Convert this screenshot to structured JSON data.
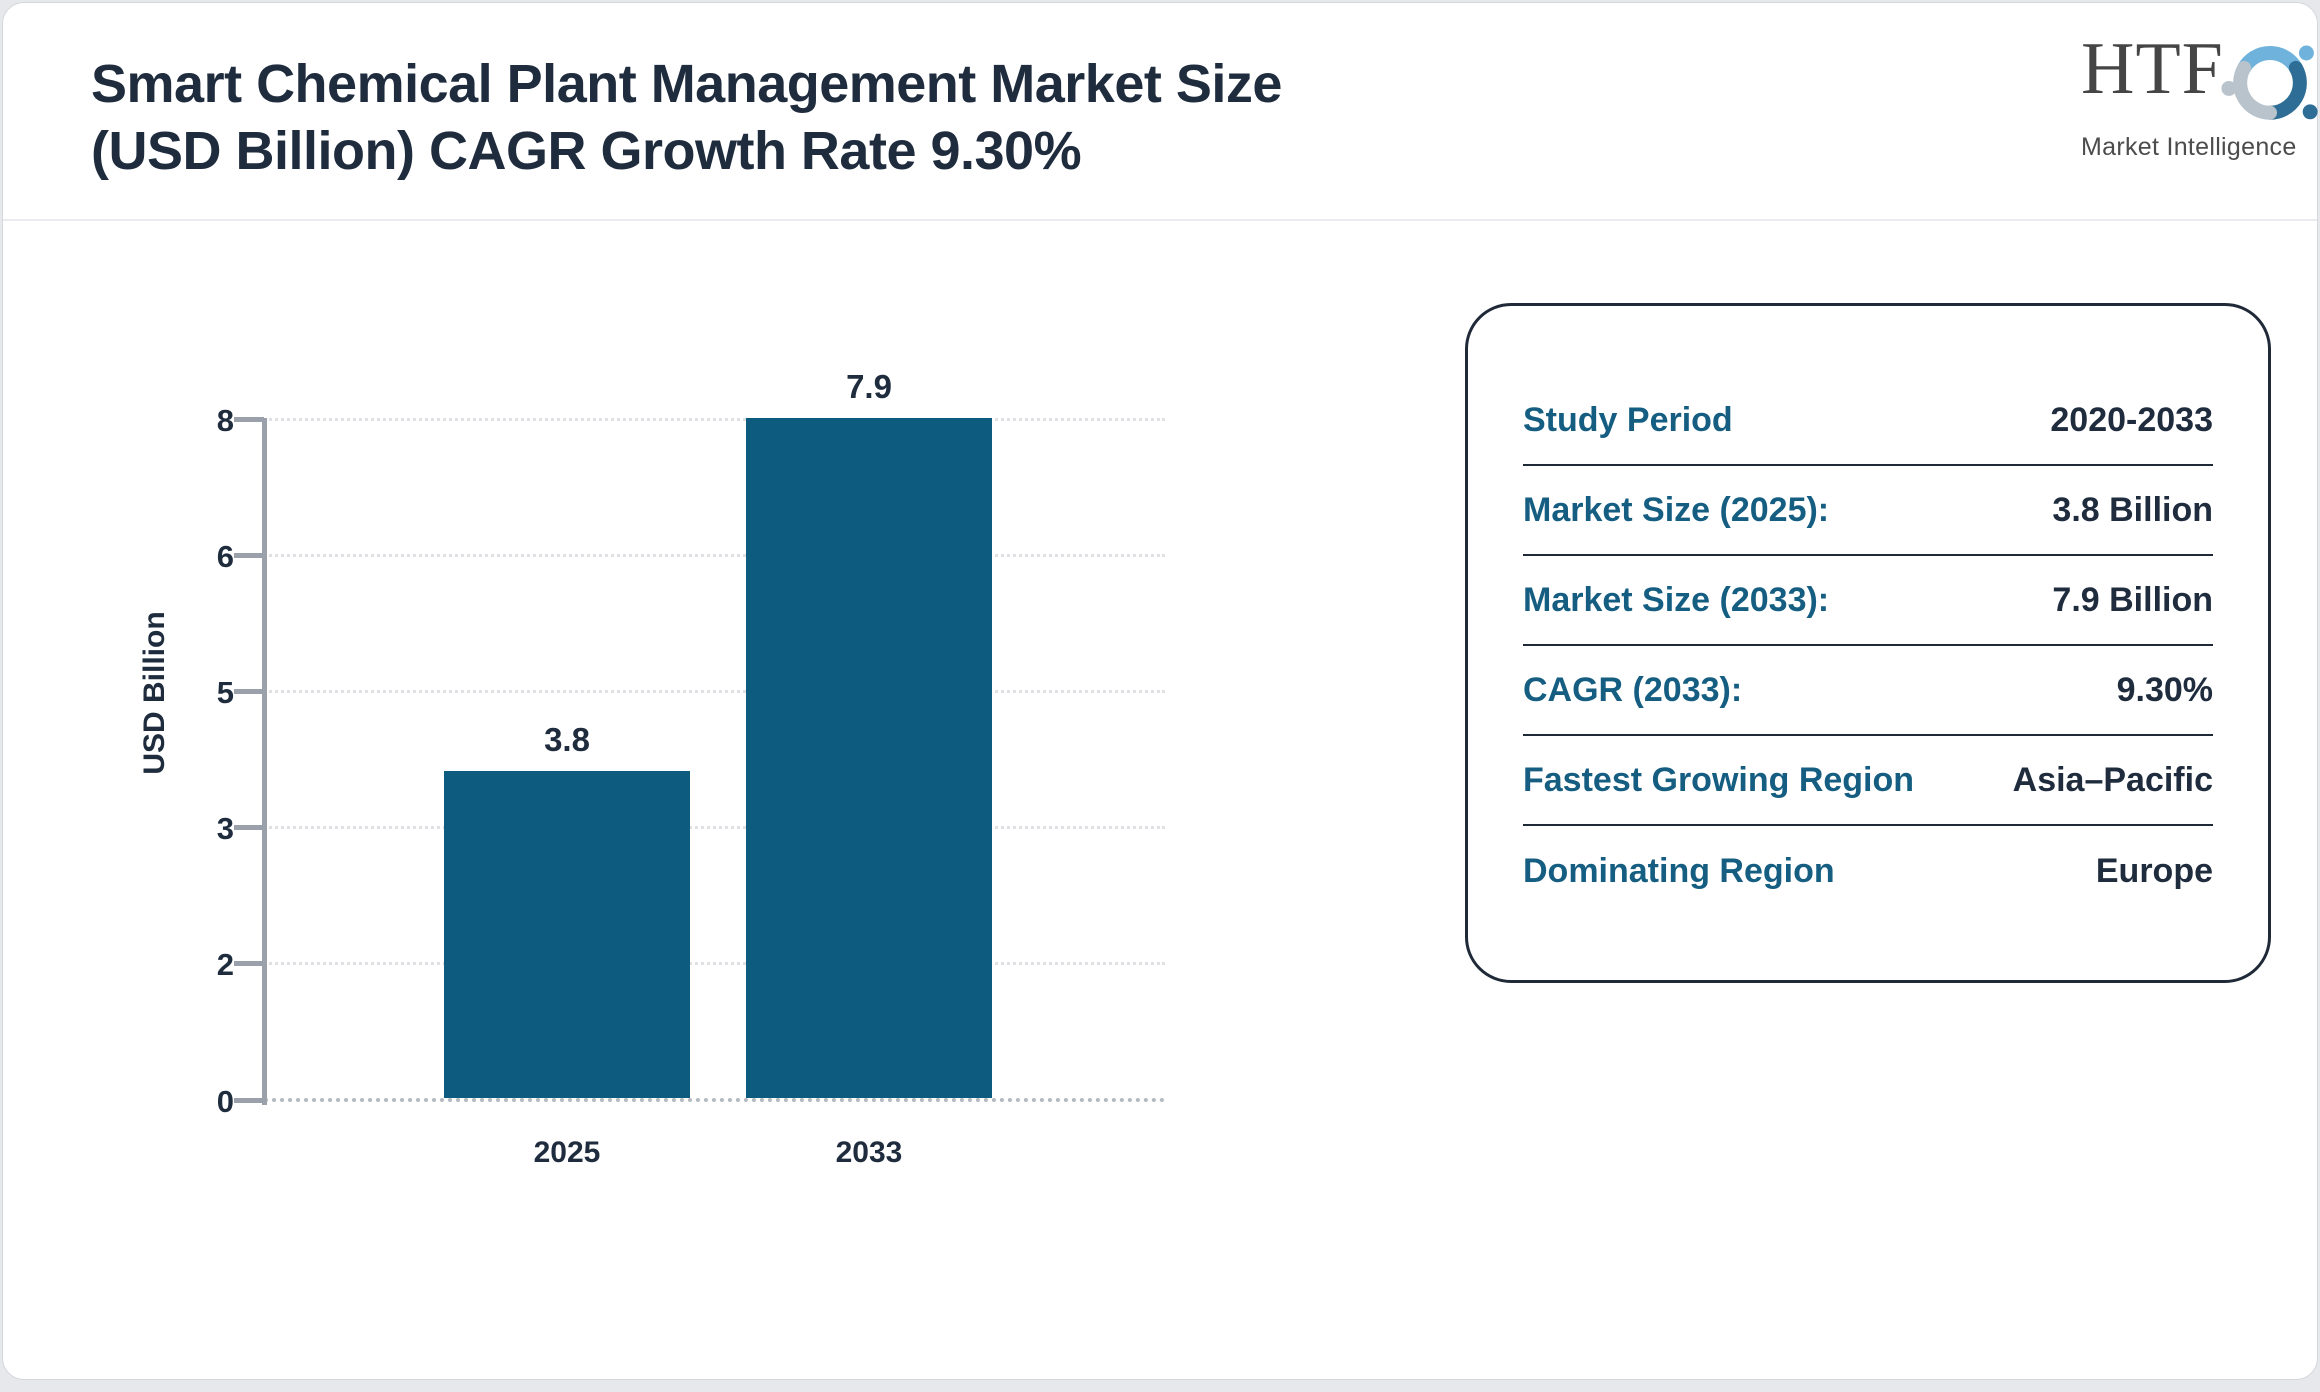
{
  "header": {
    "title_line1": "Smart Chemical Plant Management Market Size",
    "title_line2": "(USD Billion) CAGR Growth Rate 9.30%"
  },
  "logo": {
    "name": "HTF",
    "tagline": "Market Intelligence",
    "colors": {
      "light_blue": "#6fb3dc",
      "dark_blue": "#2e6d95",
      "gray": "#b9c3cc"
    }
  },
  "chart_data": {
    "type": "bar",
    "title": "Smart Chemical Plant Management Market Size (USD Billion) CAGR Growth Rate 9.30%",
    "categories": [
      "2025",
      "2033"
    ],
    "values": [
      3.8,
      7.9
    ],
    "bar_labels": [
      "3.8",
      "7.9"
    ],
    "xlabel": "",
    "ylabel": "USD Billion",
    "ylim": [
      0,
      7.9
    ],
    "yticks_top_to_bottom": [
      "8",
      "6",
      "5",
      "3",
      "2",
      "0"
    ],
    "grid": "horizontal-dotted",
    "legend": "none",
    "bar_color": "#0d5c80"
  },
  "info_card": {
    "rows": [
      {
        "label": "Study Period",
        "value": "2020-2033"
      },
      {
        "label": "Market Size (2025):",
        "value": "3.8 Billion"
      },
      {
        "label": "Market Size (2033):",
        "value": "7.9 Billion"
      },
      {
        "label": "CAGR (2033):",
        "value": "9.30%"
      },
      {
        "label": "Fastest Growing Region",
        "value": "Asia–Pacific"
      },
      {
        "label": "Dominating Region",
        "value": "Europe"
      }
    ]
  }
}
